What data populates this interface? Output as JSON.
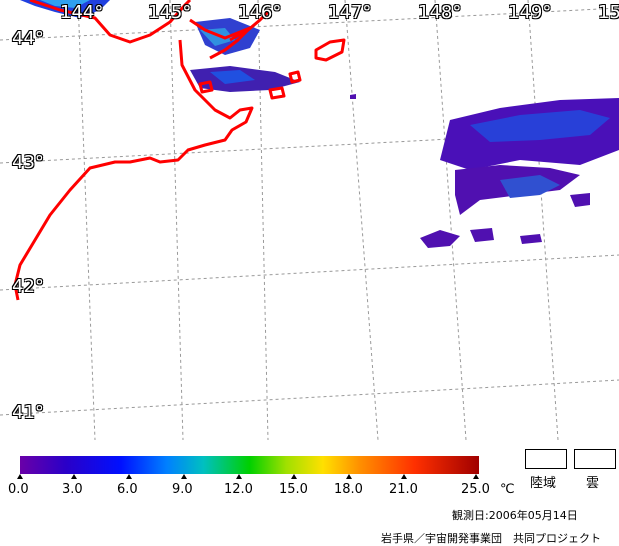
{
  "map": {
    "lon_labels": [
      "144°",
      "145°",
      "146°",
      "147°",
      "148°",
      "149°",
      "15"
    ],
    "lat_labels": [
      "44°",
      "43°",
      "42°",
      "41°"
    ],
    "coast_color": "#ff0000",
    "grid_color": "#999999"
  },
  "colorbar": {
    "ticks": [
      "0.0",
      "3.0",
      "6.0",
      "9.0",
      "12.0",
      "15.0",
      "18.0",
      "21.0",
      "25.0"
    ],
    "unit": "℃"
  },
  "legend": {
    "land": "陸域",
    "cloud": "雲"
  },
  "footer": {
    "date": "観測日:2006年05月14日",
    "credit": "岩手県／宇宙開発事業団　共同プロジェクト"
  }
}
